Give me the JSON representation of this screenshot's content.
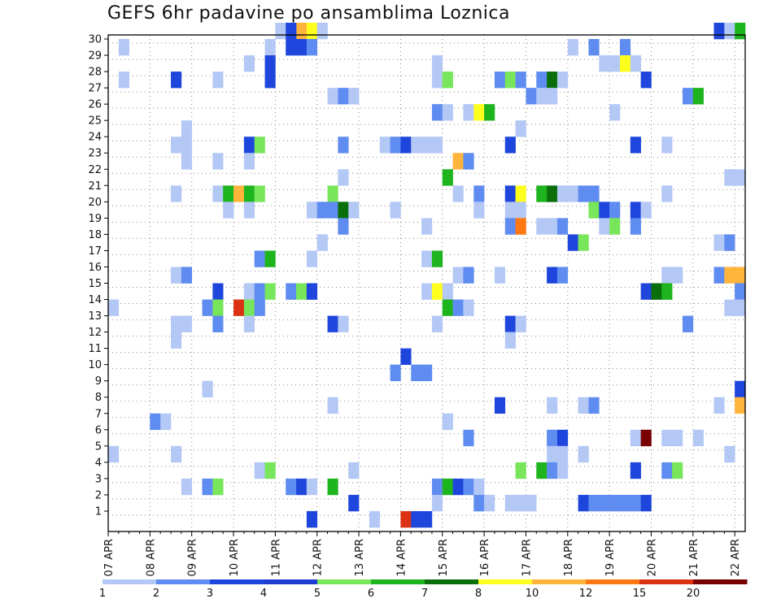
{
  "chart_data": {
    "type": "heatmap",
    "title": "GEFS 6hr padavine po ansamblima Loznica",
    "xlabel": "",
    "ylabel": "",
    "x_start": "07 APR",
    "x_tick_labels": [
      "07 APR",
      "08 APR",
      "09 APR",
      "10 APR",
      "11 APR",
      "12 APR",
      "13 APR",
      "14 APR",
      "15 APR",
      "16 APR",
      "17 APR",
      "18 APR",
      "19 APR",
      "20 APR",
      "21 APR",
      "22 APR"
    ],
    "steps_per_day": 4,
    "n_steps": 61,
    "y_tick_labels": [
      "1",
      "2",
      "3",
      "4",
      "5",
      "6",
      "7",
      "8",
      "9",
      "10",
      "11",
      "12",
      "13",
      "14",
      "15",
      "16",
      "17",
      "18",
      "19",
      "20",
      "21",
      "22",
      "23",
      "24",
      "25",
      "26",
      "27",
      "28",
      "29",
      "30"
    ],
    "ylim": [
      0,
      30
    ],
    "grid": true,
    "legend": {
      "placement": "bottom",
      "labels": [
        "1",
        "2",
        "3",
        "4",
        "5",
        "6",
        "7",
        "8",
        "10",
        "12",
        "15",
        "20"
      ],
      "colors": [
        "#b4c8f5",
        "#5f8cf0",
        "#1e46dc",
        "#1f3cd2",
        "#78e65a",
        "#1eb41e",
        "#0a6e0a",
        "#ffff1e",
        "#ffb43c",
        "#ff7814",
        "#dc3214",
        "#780000"
      ]
    },
    "class_thresholds": [
      1,
      2,
      3,
      4,
      5,
      6,
      7,
      8,
      10,
      12,
      15,
      20
    ],
    "cells": [
      [
        30,
        16,
        1
      ],
      [
        30,
        18,
        10
      ],
      [
        30,
        19,
        8
      ],
      [
        30,
        20,
        1
      ],
      [
        30,
        58,
        3
      ],
      [
        30,
        59,
        1
      ],
      [
        30,
        60,
        6
      ],
      [
        30,
        17,
        3
      ],
      [
        29,
        1,
        1
      ],
      [
        29,
        15,
        1
      ],
      [
        29,
        17,
        3
      ],
      [
        29,
        18,
        3
      ],
      [
        29,
        19,
        2
      ],
      [
        29,
        44,
        1
      ],
      [
        29,
        46,
        2
      ],
      [
        29,
        49,
        2
      ],
      [
        28,
        13,
        1
      ],
      [
        28,
        15,
        3
      ],
      [
        28,
        31,
        1
      ],
      [
        28,
        47,
        1
      ],
      [
        28,
        48,
        1
      ],
      [
        28,
        49,
        8
      ],
      [
        28,
        50,
        1
      ],
      [
        27,
        1,
        1
      ],
      [
        27,
        6,
        3
      ],
      [
        27,
        10,
        1
      ],
      [
        27,
        15,
        3
      ],
      [
        27,
        31,
        1
      ],
      [
        27,
        32,
        5
      ],
      [
        27,
        37,
        2
      ],
      [
        27,
        38,
        5
      ],
      [
        27,
        39,
        2
      ],
      [
        27,
        41,
        2
      ],
      [
        27,
        42,
        7
      ],
      [
        27,
        43,
        1
      ],
      [
        27,
        51,
        3
      ],
      [
        26,
        21,
        1
      ],
      [
        26,
        22,
        2
      ],
      [
        26,
        23,
        1
      ],
      [
        26,
        40,
        2
      ],
      [
        26,
        41,
        1
      ],
      [
        26,
        42,
        1
      ],
      [
        26,
        55,
        2
      ],
      [
        26,
        56,
        6
      ],
      [
        25,
        31,
        2
      ],
      [
        25,
        32,
        1
      ],
      [
        25,
        34,
        1
      ],
      [
        25,
        35,
        8
      ],
      [
        25,
        36,
        6
      ],
      [
        25,
        48,
        1
      ],
      [
        24,
        7,
        1
      ],
      [
        24,
        39,
        1
      ],
      [
        23,
        6,
        1
      ],
      [
        23,
        7,
        1
      ],
      [
        23,
        13,
        3
      ],
      [
        23,
        14,
        5
      ],
      [
        23,
        22,
        2
      ],
      [
        23,
        26,
        1
      ],
      [
        23,
        27,
        2
      ],
      [
        23,
        28,
        3
      ],
      [
        23,
        29,
        1
      ],
      [
        23,
        30,
        1
      ],
      [
        23,
        31,
        1
      ],
      [
        23,
        38,
        3
      ],
      [
        23,
        50,
        3
      ],
      [
        23,
        53,
        1
      ],
      [
        22,
        7,
        1
      ],
      [
        22,
        10,
        1
      ],
      [
        22,
        13,
        1
      ],
      [
        22,
        33,
        10
      ],
      [
        22,
        34,
        2
      ],
      [
        21,
        22,
        1
      ],
      [
        21,
        32,
        6
      ],
      [
        21,
        59,
        1
      ],
      [
        21,
        60,
        1
      ],
      [
        20,
        6,
        1
      ],
      [
        20,
        10,
        1
      ],
      [
        20,
        11,
        6
      ],
      [
        20,
        12,
        10
      ],
      [
        20,
        13,
        6
      ],
      [
        20,
        14,
        5
      ],
      [
        20,
        21,
        5
      ],
      [
        20,
        33,
        1
      ],
      [
        20,
        35,
        2
      ],
      [
        20,
        38,
        3
      ],
      [
        20,
        39,
        8
      ],
      [
        20,
        41,
        6
      ],
      [
        20,
        42,
        7
      ],
      [
        20,
        43,
        1
      ],
      [
        20,
        44,
        1
      ],
      [
        20,
        45,
        2
      ],
      [
        20,
        46,
        2
      ],
      [
        20,
        53,
        1
      ],
      [
        19,
        11,
        1
      ],
      [
        19,
        13,
        1
      ],
      [
        19,
        19,
        1
      ],
      [
        19,
        20,
        2
      ],
      [
        19,
        21,
        2
      ],
      [
        19,
        22,
        7
      ],
      [
        19,
        23,
        1
      ],
      [
        19,
        27,
        1
      ],
      [
        19,
        35,
        1
      ],
      [
        19,
        38,
        1
      ],
      [
        19,
        39,
        1
      ],
      [
        19,
        46,
        5
      ],
      [
        19,
        47,
        3
      ],
      [
        19,
        48,
        2
      ],
      [
        19,
        50,
        3
      ],
      [
        19,
        51,
        1
      ],
      [
        18,
        22,
        2
      ],
      [
        18,
        30,
        1
      ],
      [
        18,
        38,
        2
      ],
      [
        18,
        39,
        12
      ],
      [
        18,
        41,
        1
      ],
      [
        18,
        42,
        1
      ],
      [
        18,
        43,
        2
      ],
      [
        18,
        47,
        1
      ],
      [
        18,
        48,
        5
      ],
      [
        18,
        50,
        2
      ],
      [
        17,
        20,
        1
      ],
      [
        17,
        44,
        3
      ],
      [
        17,
        45,
        5
      ],
      [
        17,
        58,
        1
      ],
      [
        17,
        59,
        2
      ],
      [
        16,
        14,
        2
      ],
      [
        16,
        15,
        6
      ],
      [
        16,
        19,
        1
      ],
      [
        16,
        30,
        1
      ],
      [
        16,
        31,
        6
      ],
      [
        15,
        6,
        1
      ],
      [
        15,
        7,
        1
      ],
      [
        15,
        7,
        2
      ],
      [
        15,
        33,
        1
      ],
      [
        15,
        34,
        2
      ],
      [
        15,
        37,
        1
      ],
      [
        15,
        42,
        3
      ],
      [
        15,
        43,
        2
      ],
      [
        15,
        53,
        1
      ],
      [
        15,
        54,
        1
      ],
      [
        15,
        58,
        2
      ],
      [
        15,
        59,
        10
      ],
      [
        15,
        60,
        10
      ],
      [
        14,
        10,
        3
      ],
      [
        14,
        13,
        1
      ],
      [
        14,
        14,
        2
      ],
      [
        14,
        15,
        5
      ],
      [
        14,
        17,
        2
      ],
      [
        14,
        18,
        5
      ],
      [
        14,
        19,
        3
      ],
      [
        14,
        30,
        1
      ],
      [
        14,
        31,
        8
      ],
      [
        14,
        32,
        1
      ],
      [
        14,
        51,
        3
      ],
      [
        14,
        52,
        7
      ],
      [
        14,
        53,
        6
      ],
      [
        14,
        60,
        2
      ],
      [
        13,
        0,
        1
      ],
      [
        13,
        9,
        2
      ],
      [
        13,
        10,
        5
      ],
      [
        13,
        12,
        15
      ],
      [
        13,
        13,
        5
      ],
      [
        13,
        14,
        2
      ],
      [
        13,
        32,
        6
      ],
      [
        13,
        33,
        2
      ],
      [
        13,
        34,
        1
      ],
      [
        13,
        59,
        1
      ],
      [
        13,
        60,
        1
      ],
      [
        12,
        6,
        1
      ],
      [
        12,
        7,
        1
      ],
      [
        12,
        10,
        2
      ],
      [
        12,
        13,
        1
      ],
      [
        12,
        21,
        3
      ],
      [
        12,
        22,
        1
      ],
      [
        12,
        31,
        1
      ],
      [
        12,
        38,
        3
      ],
      [
        12,
        39,
        1
      ],
      [
        12,
        55,
        2
      ],
      [
        11,
        6,
        1
      ],
      [
        11,
        38,
        1
      ],
      [
        10,
        28,
        3
      ],
      [
        9,
        27,
        2
      ],
      [
        9,
        29,
        2
      ],
      [
        9,
        30,
        2
      ],
      [
        8,
        9,
        1
      ],
      [
        8,
        60,
        3
      ],
      [
        7,
        21,
        1
      ],
      [
        7,
        37,
        3
      ],
      [
        7,
        42,
        1
      ],
      [
        7,
        45,
        1
      ],
      [
        7,
        46,
        2
      ],
      [
        7,
        58,
        1
      ],
      [
        7,
        60,
        10
      ],
      [
        6,
        4,
        2
      ],
      [
        6,
        5,
        1
      ],
      [
        6,
        32,
        1
      ],
      [
        5,
        34,
        2
      ],
      [
        5,
        42,
        2
      ],
      [
        5,
        43,
        3
      ],
      [
        5,
        50,
        1
      ],
      [
        5,
        51,
        20
      ],
      [
        5,
        53,
        1
      ],
      [
        5,
        54,
        1
      ],
      [
        5,
        56,
        1
      ],
      [
        4,
        0,
        1
      ],
      [
        4,
        6,
        1
      ],
      [
        4,
        42,
        1
      ],
      [
        4,
        43,
        1
      ],
      [
        4,
        45,
        1
      ],
      [
        4,
        59,
        1
      ],
      [
        3,
        14,
        1
      ],
      [
        3,
        15,
        5
      ],
      [
        3,
        23,
        1
      ],
      [
        3,
        39,
        5
      ],
      [
        3,
        41,
        6
      ],
      [
        3,
        42,
        2
      ],
      [
        3,
        43,
        1
      ],
      [
        3,
        50,
        3
      ],
      [
        3,
        53,
        2
      ],
      [
        3,
        54,
        5
      ],
      [
        2,
        7,
        1
      ],
      [
        2,
        9,
        2
      ],
      [
        2,
        10,
        5
      ],
      [
        2,
        17,
        2
      ],
      [
        2,
        18,
        3
      ],
      [
        2,
        19,
        1
      ],
      [
        2,
        21,
        6
      ],
      [
        2,
        31,
        2
      ],
      [
        2,
        32,
        6
      ],
      [
        2,
        33,
        3
      ],
      [
        2,
        34,
        2
      ],
      [
        2,
        35,
        1
      ],
      [
        1,
        23,
        3
      ],
      [
        1,
        31,
        1
      ],
      [
        1,
        35,
        2
      ],
      [
        1,
        36,
        1
      ],
      [
        1,
        38,
        1
      ],
      [
        1,
        39,
        1
      ],
      [
        1,
        40,
        1
      ],
      [
        1,
        45,
        3
      ],
      [
        1,
        46,
        2
      ],
      [
        1,
        47,
        2
      ],
      [
        1,
        48,
        2
      ],
      [
        1,
        49,
        2
      ],
      [
        1,
        50,
        2
      ],
      [
        1,
        51,
        3
      ],
      [
        0,
        19,
        3
      ],
      [
        0,
        25,
        1
      ],
      [
        0,
        28,
        15
      ],
      [
        0,
        29,
        3
      ],
      [
        0,
        30,
        3
      ]
    ]
  }
}
